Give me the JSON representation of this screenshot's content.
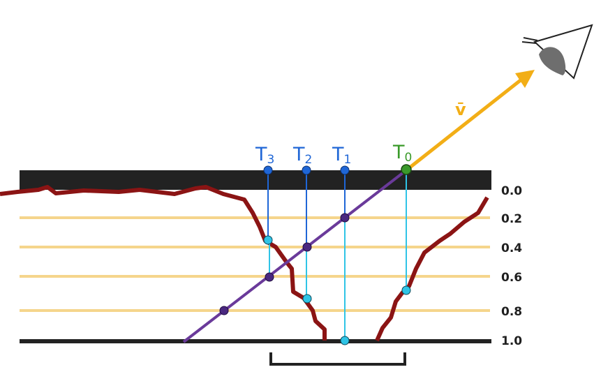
{
  "colors": {
    "surface": "#222222",
    "layer_line": "#f5d58c",
    "heightfield": "#8b1414",
    "ray": "#6a3a9a",
    "view_vector": "#f2ae16",
    "steps_blue": "#1f66d6",
    "steps_cyan": "#2fc4e6",
    "t0_green": "#3a9a2a",
    "dot_purple": "#4a2880"
  },
  "depth_labels": [
    "0.0",
    "0.2",
    "0.4",
    "0.6",
    "0.8",
    "1.0"
  ],
  "steps": [
    {
      "name": "T",
      "sub": "3"
    },
    {
      "name": "T",
      "sub": "2"
    },
    {
      "name": "T",
      "sub": "1"
    },
    {
      "name": "T",
      "sub": "0"
    }
  ],
  "view_vector_label": "v̄",
  "icons": {
    "eye": "eye-icon"
  }
}
